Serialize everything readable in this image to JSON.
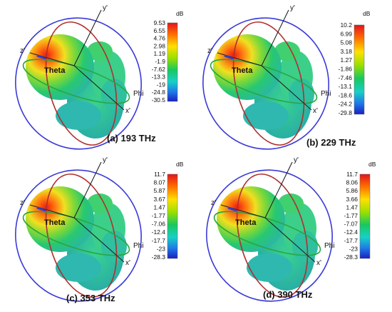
{
  "unit": "dB",
  "axis_labels": {
    "x": "x'",
    "y": "y'",
    "z": "z'",
    "theta": "Theta",
    "phi": "Phi"
  },
  "colors": {
    "blue_ring": "#3a3ad8",
    "red_ring": "#b03030",
    "green_ring": "#2aa640",
    "axis": "#222222"
  },
  "panels": [
    {
      "caption": "(a) 193 THz",
      "ticks": [
        "9.53",
        "6.55",
        "4.76",
        "2.98",
        "1.19",
        "-1.9",
        "-7.62",
        "-13.3",
        "-19",
        "-24.8",
        "-30.5"
      ]
    },
    {
      "caption": "(b) 229 THz",
      "ticks": [
        "10.2",
        "6.99",
        "5.08",
        "3.18",
        "1.27",
        "-1.86",
        "-7.46",
        "-13.1",
        "-18.6",
        "-24.2",
        "-29.8"
      ]
    },
    {
      "caption": "(c) 353 THz",
      "ticks": [
        "11.7",
        "8.07",
        "5.87",
        "3.67",
        "1.47",
        "-1.77",
        "-7.06",
        "-12.4",
        "-17.7",
        "-23",
        "-28.3"
      ]
    },
    {
      "caption": "(d) 390 THz",
      "ticks": [
        "11.7",
        "8.06",
        "5.86",
        "3.66",
        "1.47",
        "-1.77",
        "-7.07",
        "-12.4",
        "-17.7",
        "-23",
        "-28.3"
      ]
    }
  ]
}
